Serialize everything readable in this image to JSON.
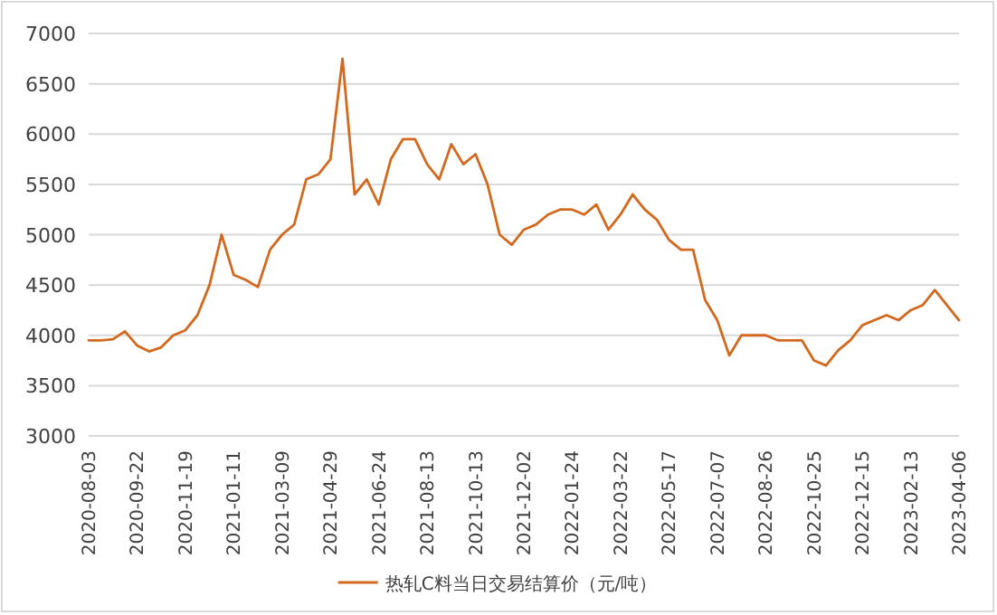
{
  "chart_data": {
    "type": "line",
    "categories": [
      "2020-08-03",
      null,
      null,
      null,
      "2020-09-22",
      null,
      null,
      null,
      "2020-11-19",
      null,
      null,
      null,
      "2021-01-11",
      null,
      null,
      null,
      "2021-03-09",
      null,
      null,
      null,
      "2021-04-29",
      null,
      null,
      null,
      "2021-06-24",
      null,
      null,
      null,
      "2021-08-13",
      null,
      null,
      null,
      "2021-10-13",
      null,
      null,
      null,
      "2021-12-02",
      null,
      null,
      null,
      "2022-01-24",
      null,
      null,
      null,
      "2022-03-22",
      null,
      null,
      null,
      "2022-05-17",
      null,
      null,
      null,
      "2022-07-07",
      null,
      null,
      null,
      "2022-08-26",
      null,
      null,
      null,
      "2022-10-25",
      null,
      null,
      null,
      "2022-12-15",
      null,
      null,
      null,
      "2023-02-13",
      null,
      null,
      null,
      "2023-04-06"
    ],
    "series": [
      {
        "name": "热轧C料当日交易结算价（元/吨）",
        "color": "#d2691e",
        "values": [
          3950,
          3950,
          3960,
          4040,
          3900,
          3840,
          3880,
          4000,
          4050,
          4200,
          4500,
          5000,
          4600,
          4550,
          4480,
          4850,
          5000,
          5100,
          5550,
          5600,
          5750,
          6750,
          5400,
          5550,
          5300,
          5750,
          5950,
          5950,
          5700,
          5550,
          5900,
          5700,
          5800,
          5500,
          5000,
          4900,
          5050,
          5100,
          5200,
          5250,
          5250,
          5200,
          5300,
          5050,
          5200,
          5400,
          5250,
          5150,
          4950,
          4850,
          4850,
          4350,
          4150,
          3800,
          4000,
          4000,
          4000,
          3950,
          3950,
          3950,
          3750,
          3700,
          3850,
          3950,
          4100,
          4150,
          4200,
          4150,
          4250,
          4300,
          4450,
          4300,
          4150
        ]
      }
    ],
    "ylim": [
      3000,
      7000
    ],
    "yticks": [
      3000,
      3500,
      4000,
      4500,
      5000,
      5500,
      6000,
      6500,
      7000
    ],
    "grid": "y",
    "legend": "bottom"
  }
}
